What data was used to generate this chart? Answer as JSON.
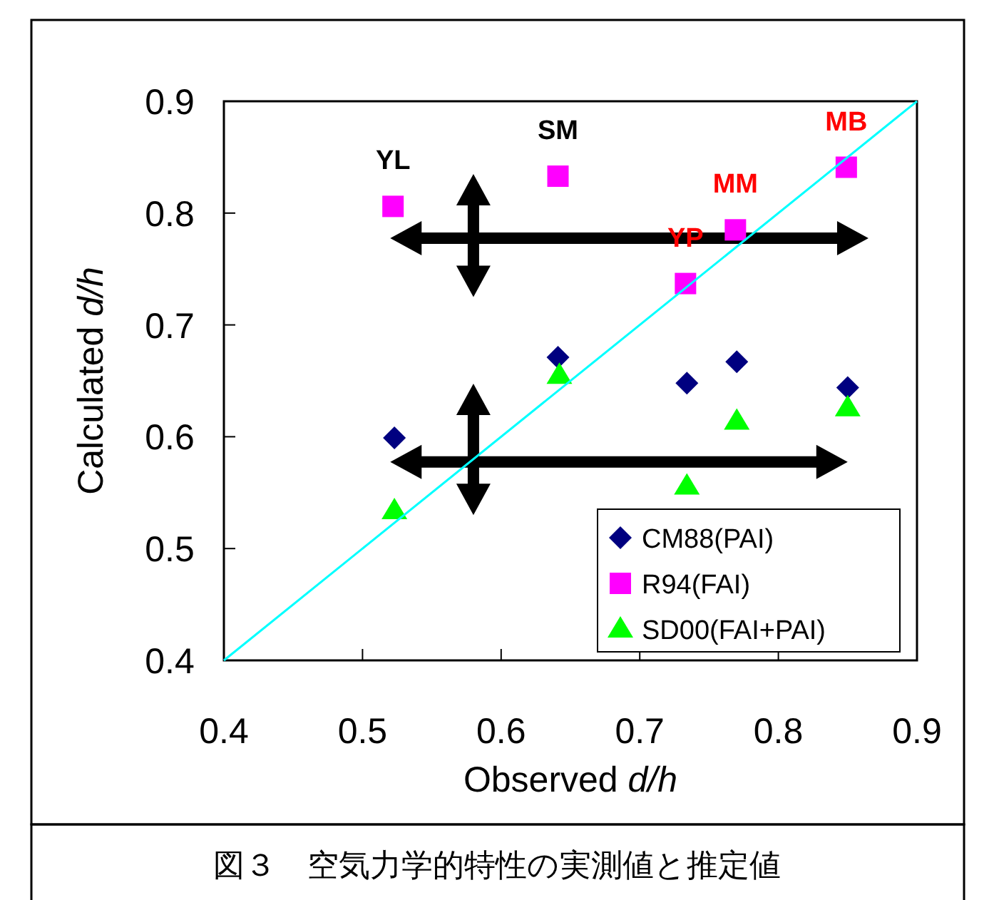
{
  "chart_data": {
    "type": "scatter",
    "xlabel": "Observed *d/h*",
    "ylabel": "Calculated *d/h*",
    "xlim": [
      0.4,
      0.9
    ],
    "ylim": [
      0.4,
      0.9
    ],
    "xticks": [
      0.4,
      0.5,
      0.6,
      0.7,
      0.8,
      0.9
    ],
    "yticks": [
      0.4,
      0.5,
      0.6,
      0.7,
      0.8,
      0.9
    ],
    "legend": "bottom right",
    "series": [
      {
        "name": "CM88(PAI)",
        "color": "#000080",
        "marker": "diamond",
        "x": [
          0.523,
          0.641,
          0.734,
          0.77,
          0.85
        ],
        "values": [
          0.599,
          0.671,
          0.648,
          0.667,
          0.644
        ]
      },
      {
        "name": "R94(FAI)",
        "color": "#ff00ff",
        "marker": "square",
        "x": [
          0.522,
          0.641,
          0.733,
          0.769,
          0.849
        ],
        "values": [
          0.806,
          0.833,
          0.737,
          0.785,
          0.841
        ]
      },
      {
        "name": "SD00(FAI+PAI)",
        "color": "#00ff00",
        "marker": "triangle",
        "x": [
          0.523,
          0.642,
          0.734,
          0.77,
          0.85
        ],
        "values": [
          0.534,
          0.655,
          0.556,
          0.614,
          0.626
        ]
      },
      {
        "type": "line",
        "color": "#00ffff",
        "marker": "none",
        "x": [
          0.4,
          0.9
        ],
        "values": [
          0.4,
          0.9
        ]
      }
    ],
    "annotations": [
      "YL",
      "SM",
      "YP",
      "MM",
      "MB",
      "図３　空気力学的特性の実測値と推定値"
    ]
  }
}
